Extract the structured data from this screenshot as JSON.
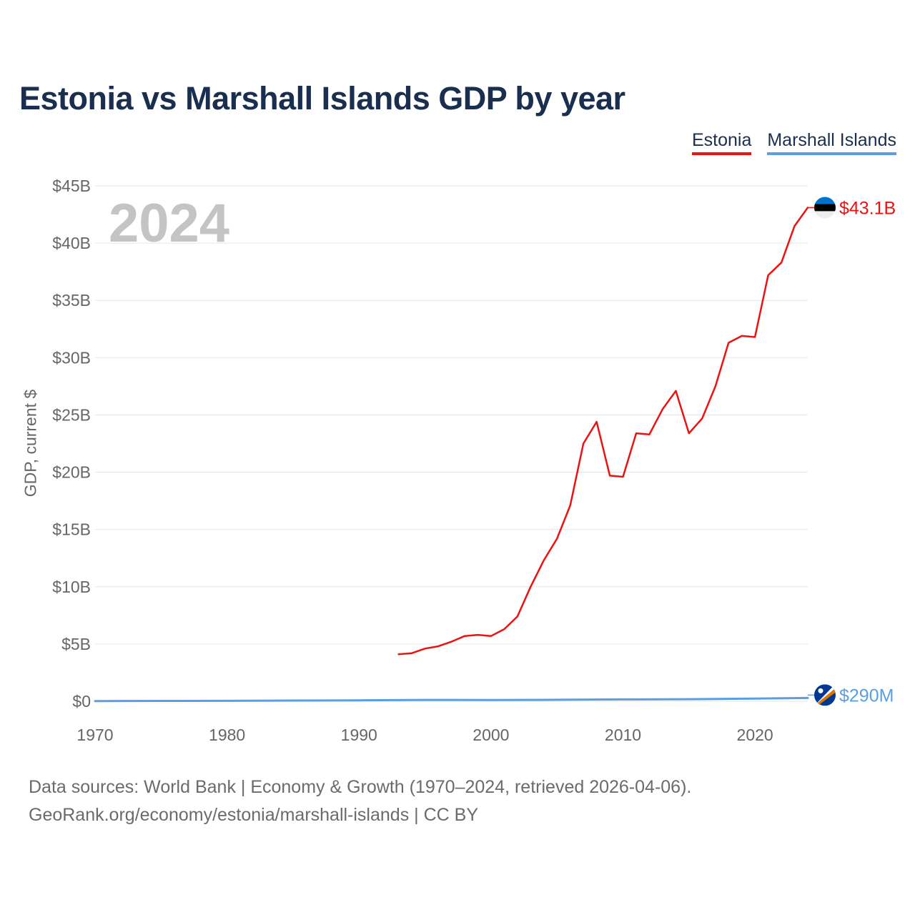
{
  "title": "Estonia vs Marshall Islands GDP by year",
  "legend": [
    {
      "name": "Estonia",
      "color": "#ee1111"
    },
    {
      "name": "Marshall Islands",
      "color": "#5b9fe3"
    }
  ],
  "footer": {
    "line1": "Data sources: World Bank | Economy & Growth (1970–2024, retrieved 2026-04-06).",
    "line2": "GeoRank.org/economy/estonia/marshall-islands | CC BY"
  },
  "chart_data": {
    "type": "line",
    "title": "Estonia vs Marshall Islands GDP by year",
    "ylabel": "GDP, current $",
    "xlabel": "",
    "xlim": [
      1970,
      2024
    ],
    "ylim": [
      0,
      45
    ],
    "y_unit": "billions USD",
    "x_ticks": [
      1970,
      1980,
      1990,
      2000,
      2010,
      2020
    ],
    "y_ticks": [
      {
        "value": 0,
        "label": "$0"
      },
      {
        "value": 5,
        "label": "$5B"
      },
      {
        "value": 10,
        "label": "$10B"
      },
      {
        "value": 15,
        "label": "$15B"
      },
      {
        "value": 20,
        "label": "$20B"
      },
      {
        "value": 25,
        "label": "$25B"
      },
      {
        "value": 30,
        "label": "$30B"
      },
      {
        "value": 35,
        "label": "$35B"
      },
      {
        "value": 40,
        "label": "$40B"
      },
      {
        "value": 45,
        "label": "$45B"
      }
    ],
    "current_year": "2024",
    "grid": true,
    "legend_position": "top-right",
    "series": [
      {
        "name": "Estonia",
        "color": "#ee1111",
        "end_label": "$43.1B",
        "x": [
          1993,
          1994,
          1995,
          1996,
          1997,
          1998,
          1999,
          2000,
          2001,
          2002,
          2003,
          2004,
          2005,
          2006,
          2007,
          2008,
          2009,
          2010,
          2011,
          2012,
          2013,
          2014,
          2015,
          2016,
          2017,
          2018,
          2019,
          2020,
          2021,
          2022,
          2023,
          2024
        ],
        "values": [
          4.1,
          4.2,
          4.6,
          4.8,
          5.2,
          5.7,
          5.8,
          5.7,
          6.3,
          7.4,
          10.0,
          12.3,
          14.2,
          17.1,
          22.5,
          24.4,
          19.7,
          19.6,
          23.4,
          23.3,
          25.5,
          27.1,
          23.4,
          24.7,
          27.5,
          31.3,
          31.9,
          31.8,
          37.2,
          38.3,
          41.5,
          43.1
        ]
      },
      {
        "name": "Marshall Islands",
        "color": "#5b9fe3",
        "end_label": "$290M",
        "x": [
          1970,
          1975,
          1980,
          1985,
          1990,
          1995,
          2000,
          2005,
          2010,
          2015,
          2020,
          2024
        ],
        "values": [
          0.02,
          0.03,
          0.04,
          0.06,
          0.08,
          0.12,
          0.11,
          0.13,
          0.16,
          0.18,
          0.24,
          0.29
        ]
      }
    ]
  }
}
